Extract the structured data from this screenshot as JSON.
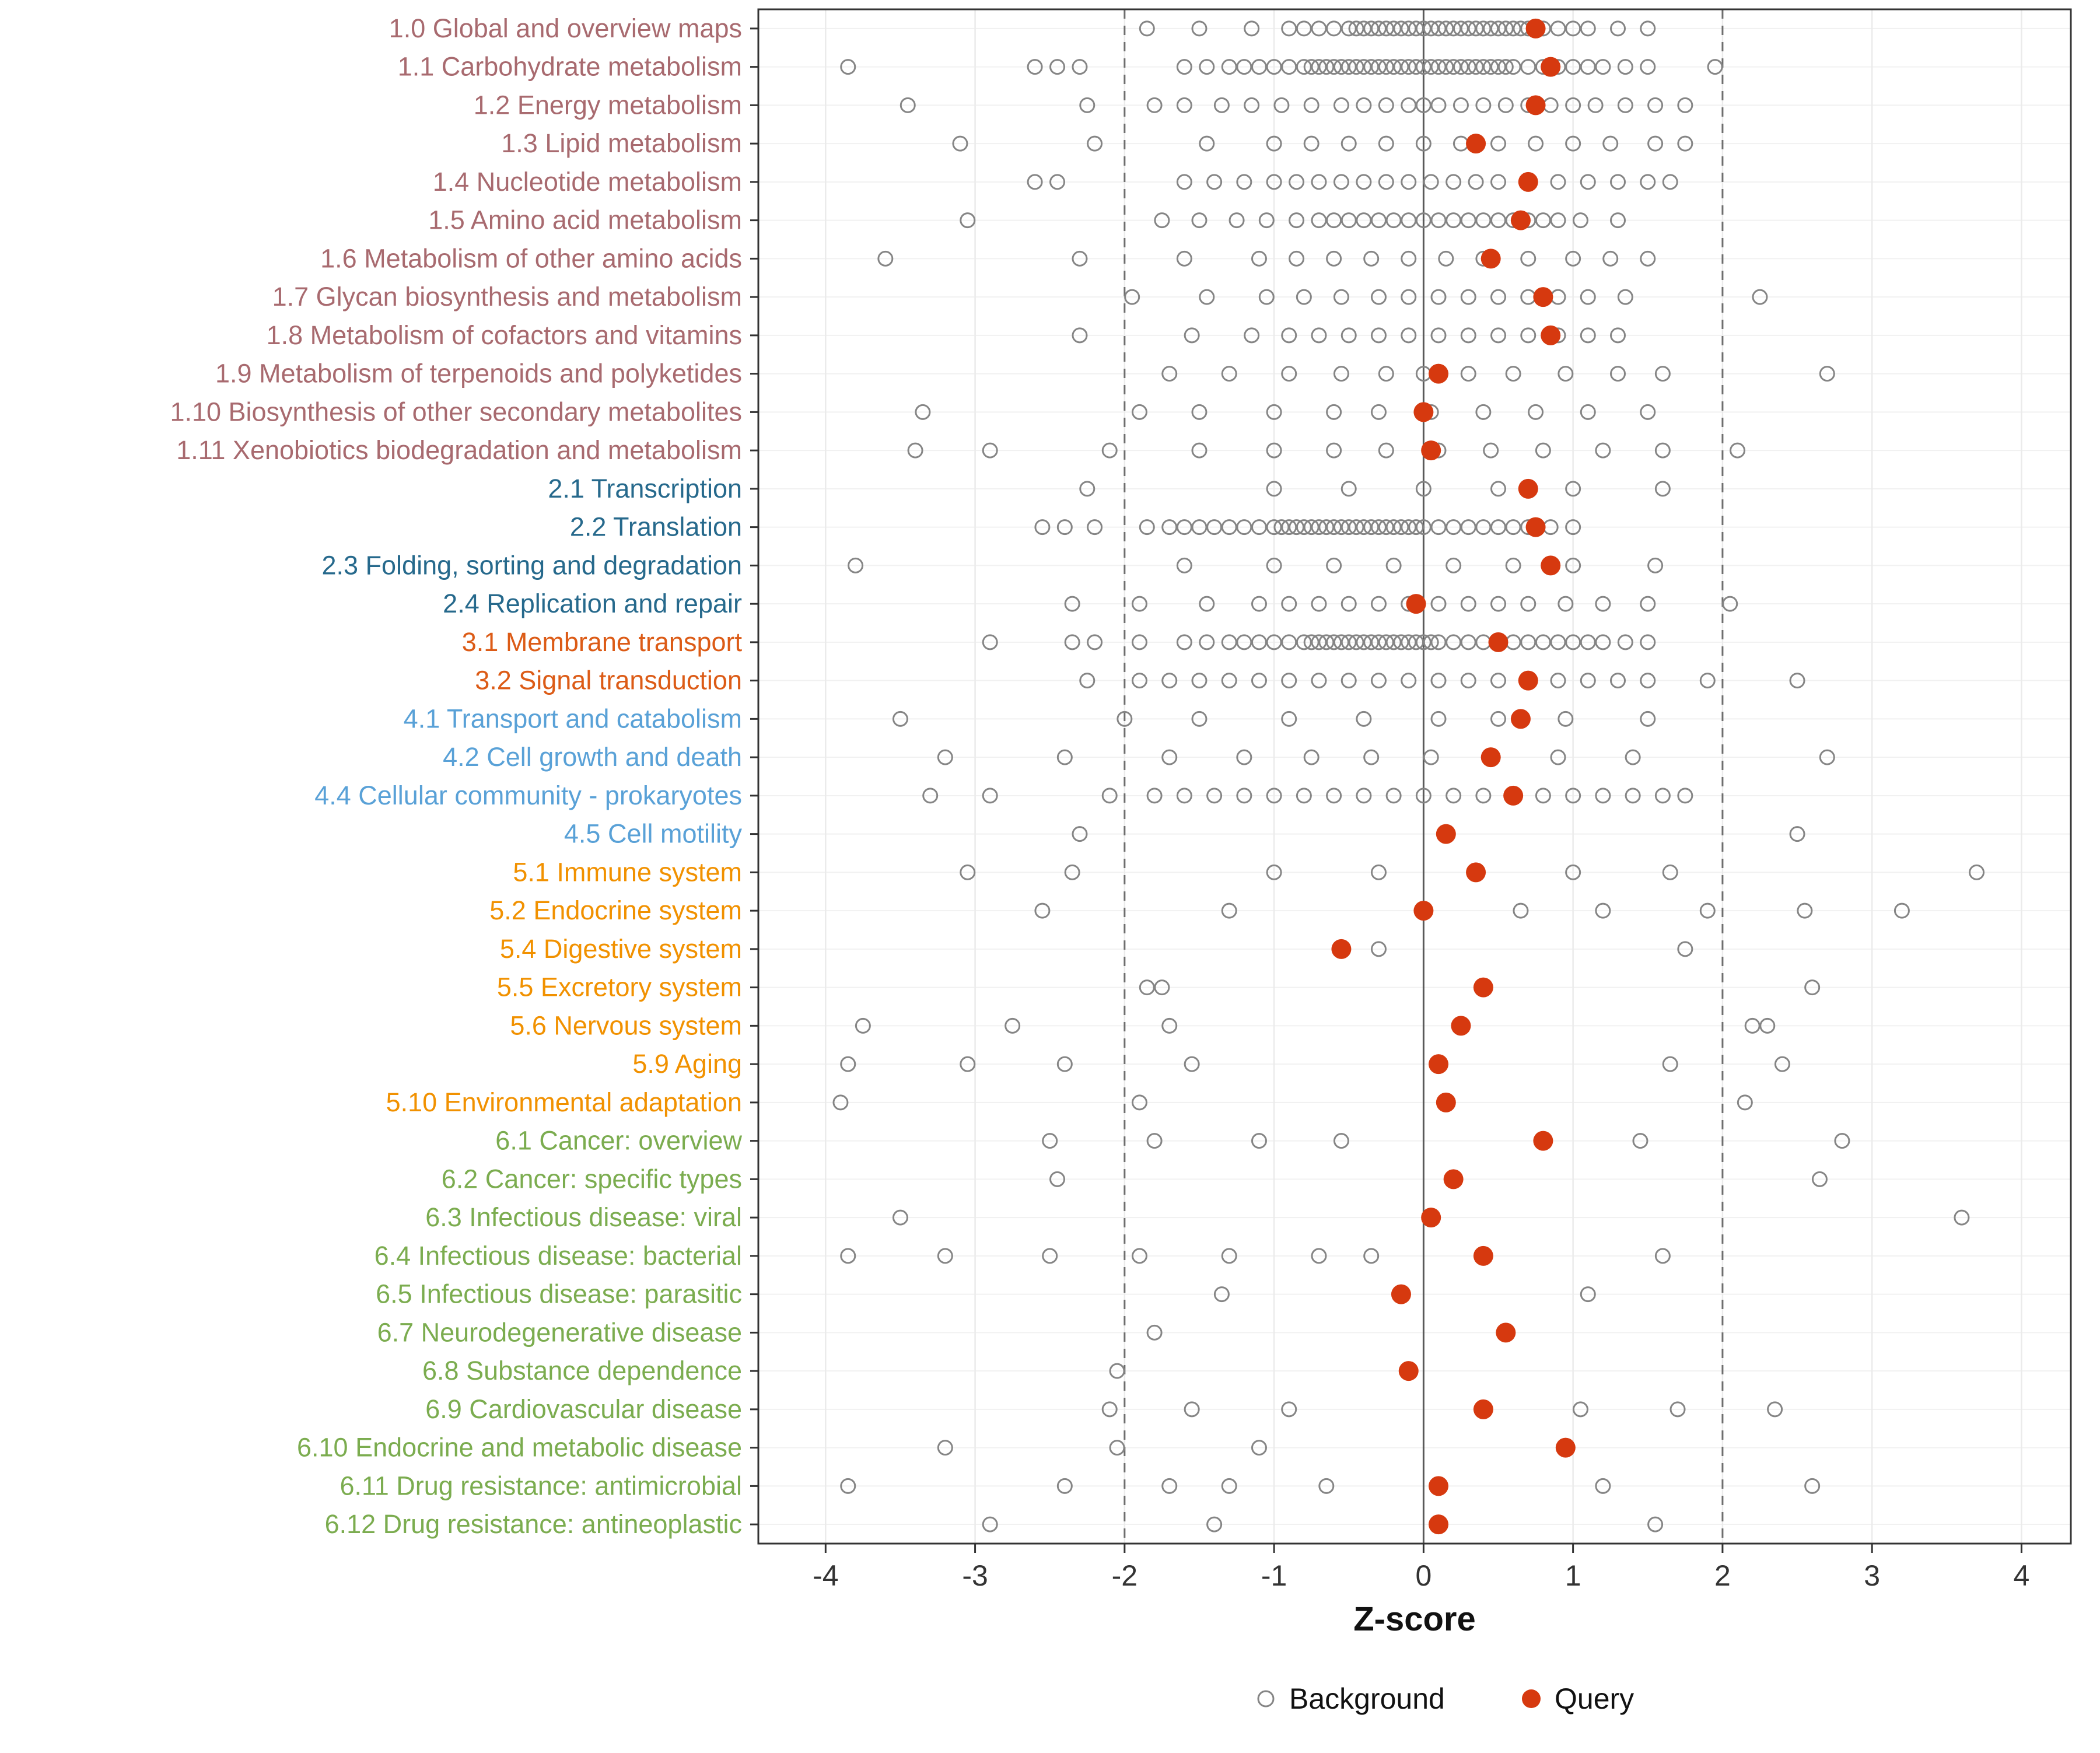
{
  "chart_data": {
    "type": "scatter",
    "title": "",
    "xlabel": "Z-score",
    "ylabel": "",
    "xlim": [
      -4.45,
      4.33
    ],
    "x_ticks": [
      -4,
      -3,
      -2,
      -1,
      0,
      1,
      2,
      3,
      4
    ],
    "grid": "light",
    "legend_position": "bottom",
    "reference_lines": {
      "solid": [
        0
      ],
      "dashed": [
        -2,
        2
      ]
    },
    "colors": {
      "background": "#858585",
      "query": "#D6390F"
    },
    "group_colors": {
      "metabolism": "#A86A6F",
      "genetic-information-processing": "#26698C",
      "environmental-information-processing": "#DC5B16",
      "cellular-processes": "#59A1D7",
      "organismal-systems": "#F19100",
      "human-diseases": "#7BAC4F"
    },
    "legend": {
      "background_label": "Background",
      "query_label": "Query"
    },
    "rows": [
      {
        "label": "1.0 Global and overview maps",
        "group": "metabolism",
        "query": 0.75,
        "background": [
          -1.85,
          -1.5,
          -1.15,
          -0.9,
          -0.8,
          -0.7,
          -0.6,
          -0.5,
          -0.45,
          -0.4,
          -0.35,
          -0.3,
          -0.25,
          -0.2,
          -0.15,
          -0.1,
          -0.05,
          0,
          0.05,
          0.1,
          0.15,
          0.2,
          0.25,
          0.3,
          0.35,
          0.4,
          0.45,
          0.5,
          0.55,
          0.6,
          0.65,
          0.7,
          0.8,
          0.9,
          1.0,
          1.1,
          1.3,
          1.5
        ]
      },
      {
        "label": "1.1 Carbohydrate metabolism",
        "group": "metabolism",
        "query": 0.85,
        "background": [
          -3.85,
          -2.6,
          -2.45,
          -2.3,
          -1.6,
          -1.45,
          -1.3,
          -1.2,
          -1.1,
          -1.0,
          -0.9,
          -0.8,
          -0.75,
          -0.7,
          -0.65,
          -0.6,
          -0.55,
          -0.5,
          -0.45,
          -0.4,
          -0.35,
          -0.3,
          -0.25,
          -0.2,
          -0.15,
          -0.1,
          -0.05,
          0,
          0.05,
          0.1,
          0.15,
          0.2,
          0.25,
          0.3,
          0.35,
          0.4,
          0.45,
          0.5,
          0.55,
          0.6,
          0.7,
          0.8,
          0.9,
          1.0,
          1.1,
          1.2,
          1.35,
          1.5,
          1.95
        ]
      },
      {
        "label": "1.2 Energy metabolism",
        "group": "metabolism",
        "query": 0.75,
        "background": [
          -3.45,
          -2.25,
          -1.8,
          -1.6,
          -1.35,
          -1.15,
          -0.95,
          -0.75,
          -0.55,
          -0.4,
          -0.25,
          -0.1,
          0,
          0.1,
          0.25,
          0.4,
          0.55,
          0.7,
          0.85,
          1.0,
          1.15,
          1.35,
          1.55,
          1.75
        ]
      },
      {
        "label": "1.3 Lipid metabolism",
        "group": "metabolism",
        "query": 0.35,
        "background": [
          -3.1,
          -2.2,
          -1.45,
          -1.0,
          -0.75,
          -0.5,
          -0.25,
          0,
          0.25,
          0.5,
          0.75,
          1.0,
          1.25,
          1.55,
          1.75
        ]
      },
      {
        "label": "1.4 Nucleotide metabolism",
        "group": "metabolism",
        "query": 0.7,
        "background": [
          -2.6,
          -2.45,
          -1.6,
          -1.4,
          -1.2,
          -1.0,
          -0.85,
          -0.7,
          -0.55,
          -0.4,
          -0.25,
          -0.1,
          0.05,
          0.2,
          0.35,
          0.5,
          0.7,
          0.9,
          1.1,
          1.3,
          1.5,
          1.65
        ]
      },
      {
        "label": "1.5 Amino acid metabolism",
        "group": "metabolism",
        "query": 0.65,
        "background": [
          -3.05,
          -1.75,
          -1.5,
          -1.25,
          -1.05,
          -0.85,
          -0.7,
          -0.6,
          -0.5,
          -0.4,
          -0.3,
          -0.2,
          -0.1,
          0,
          0.1,
          0.2,
          0.3,
          0.4,
          0.5,
          0.6,
          0.7,
          0.8,
          0.9,
          1.05,
          1.3
        ]
      },
      {
        "label": "1.6 Metabolism of other amino acids",
        "group": "metabolism",
        "query": 0.45,
        "background": [
          -3.6,
          -2.3,
          -1.6,
          -1.1,
          -0.85,
          -0.6,
          -0.35,
          -0.1,
          0.15,
          0.4,
          0.7,
          1.0,
          1.25,
          1.5
        ]
      },
      {
        "label": "1.7 Glycan biosynthesis and metabolism",
        "group": "metabolism",
        "query": 0.8,
        "background": [
          -1.95,
          -1.45,
          -1.05,
          -0.8,
          -0.55,
          -0.3,
          -0.1,
          0.1,
          0.3,
          0.5,
          0.7,
          0.9,
          1.1,
          1.35,
          2.25
        ]
      },
      {
        "label": "1.8 Metabolism of cofactors and vitamins",
        "group": "metabolism",
        "query": 0.85,
        "background": [
          -2.3,
          -1.55,
          -1.15,
          -0.9,
          -0.7,
          -0.5,
          -0.3,
          -0.1,
          0.1,
          0.3,
          0.5,
          0.7,
          0.9,
          1.1,
          1.3
        ]
      },
      {
        "label": "1.9 Metabolism of terpenoids and polyketides",
        "group": "metabolism",
        "query": 0.1,
        "background": [
          -1.7,
          -1.3,
          -0.9,
          -0.55,
          -0.25,
          0,
          0.3,
          0.6,
          0.95,
          1.3,
          1.6,
          2.7
        ]
      },
      {
        "label": "1.10 Biosynthesis of other secondary metabolites",
        "group": "metabolism",
        "query": 0.0,
        "background": [
          -3.35,
          -1.9,
          -1.5,
          -1.0,
          -0.6,
          -0.3,
          0.05,
          0.4,
          0.75,
          1.1,
          1.5
        ]
      },
      {
        "label": "1.11 Xenobiotics biodegradation and metabolism",
        "group": "metabolism",
        "query": 0.05,
        "background": [
          -3.4,
          -2.9,
          -2.1,
          -1.5,
          -1.0,
          -0.6,
          -0.25,
          0.1,
          0.45,
          0.8,
          1.2,
          1.6,
          2.1
        ]
      },
      {
        "label": "2.1 Transcription",
        "group": "genetic-information-processing",
        "query": 0.7,
        "background": [
          -2.25,
          -1.0,
          -0.5,
          0,
          0.5,
          1.0,
          1.6
        ]
      },
      {
        "label": "2.2 Translation",
        "group": "genetic-information-processing",
        "query": 0.75,
        "background": [
          -2.55,
          -2.4,
          -2.2,
          -1.85,
          -1.7,
          -1.6,
          -1.5,
          -1.4,
          -1.3,
          -1.2,
          -1.1,
          -1.0,
          -0.95,
          -0.9,
          -0.85,
          -0.8,
          -0.75,
          -0.7,
          -0.65,
          -0.6,
          -0.55,
          -0.5,
          -0.45,
          -0.4,
          -0.35,
          -0.3,
          -0.25,
          -0.2,
          -0.15,
          -0.1,
          -0.05,
          0,
          0.1,
          0.2,
          0.3,
          0.4,
          0.5,
          0.6,
          0.7,
          0.85,
          1.0
        ]
      },
      {
        "label": "2.3 Folding, sorting and degradation",
        "group": "genetic-information-processing",
        "query": 0.85,
        "background": [
          -3.8,
          -1.6,
          -1.0,
          -0.6,
          -0.2,
          0.2,
          0.6,
          1.0,
          1.55
        ]
      },
      {
        "label": "2.4 Replication and repair",
        "group": "genetic-information-processing",
        "query": -0.05,
        "background": [
          -2.35,
          -1.9,
          -1.45,
          -1.1,
          -0.9,
          -0.7,
          -0.5,
          -0.3,
          -0.1,
          0.1,
          0.3,
          0.5,
          0.7,
          0.95,
          1.2,
          1.5,
          2.05
        ]
      },
      {
        "label": "3.1 Membrane transport",
        "group": "environmental-information-processing",
        "query": 0.5,
        "background": [
          -2.9,
          -2.35,
          -2.2,
          -1.9,
          -1.6,
          -1.45,
          -1.3,
          -1.2,
          -1.1,
          -1.0,
          -0.9,
          -0.8,
          -0.75,
          -0.7,
          -0.65,
          -0.6,
          -0.55,
          -0.5,
          -0.45,
          -0.4,
          -0.35,
          -0.3,
          -0.25,
          -0.2,
          -0.15,
          -0.1,
          -0.05,
          0,
          0.05,
          0.1,
          0.2,
          0.3,
          0.4,
          0.5,
          0.6,
          0.7,
          0.8,
          0.9,
          1.0,
          1.1,
          1.2,
          1.35,
          1.5
        ]
      },
      {
        "label": "3.2 Signal transduction",
        "group": "environmental-information-processing",
        "query": 0.7,
        "background": [
          -2.25,
          -1.9,
          -1.7,
          -1.5,
          -1.3,
          -1.1,
          -0.9,
          -0.7,
          -0.5,
          -0.3,
          -0.1,
          0.1,
          0.3,
          0.5,
          0.7,
          0.9,
          1.1,
          1.3,
          1.5,
          1.9,
          2.5
        ]
      },
      {
        "label": "4.1 Transport and catabolism",
        "group": "cellular-processes",
        "query": 0.65,
        "background": [
          -3.5,
          -2.0,
          -1.5,
          -0.9,
          -0.4,
          0.1,
          0.5,
          0.95,
          1.5
        ]
      },
      {
        "label": "4.2 Cell growth and death",
        "group": "cellular-processes",
        "query": 0.45,
        "background": [
          -3.2,
          -2.4,
          -1.7,
          -1.2,
          -0.75,
          -0.35,
          0.05,
          0.45,
          0.9,
          1.4,
          2.7
        ]
      },
      {
        "label": "4.4 Cellular community - prokaryotes",
        "group": "cellular-processes",
        "query": 0.6,
        "background": [
          -3.3,
          -2.9,
          -2.1,
          -1.8,
          -1.6,
          -1.4,
          -1.2,
          -1.0,
          -0.8,
          -0.6,
          -0.4,
          -0.2,
          0,
          0.2,
          0.4,
          0.6,
          0.8,
          1.0,
          1.2,
          1.4,
          1.6,
          1.75
        ]
      },
      {
        "label": "4.5 Cell motility",
        "group": "cellular-processes",
        "query": 0.15,
        "background": [
          -2.3,
          2.5
        ]
      },
      {
        "label": "5.1 Immune system",
        "group": "organismal-systems",
        "query": 0.35,
        "background": [
          -3.05,
          -2.35,
          -1.0,
          -0.3,
          0.35,
          1.0,
          1.65,
          3.7
        ]
      },
      {
        "label": "5.2 Endocrine system",
        "group": "organismal-systems",
        "query": 0.0,
        "background": [
          -2.55,
          -1.3,
          0.65,
          1.2,
          1.9,
          2.55,
          3.2
        ]
      },
      {
        "label": "5.4 Digestive system",
        "group": "organismal-systems",
        "query": -0.55,
        "background": [
          -0.3,
          1.75
        ]
      },
      {
        "label": "5.5 Excretory system",
        "group": "organismal-systems",
        "query": 0.4,
        "background": [
          -1.85,
          -1.75,
          2.6
        ]
      },
      {
        "label": "5.6 Nervous system",
        "group": "organismal-systems",
        "query": 0.25,
        "background": [
          -3.75,
          -2.75,
          -1.7,
          2.2,
          2.3
        ]
      },
      {
        "label": "5.9 Aging",
        "group": "organismal-systems",
        "query": 0.1,
        "background": [
          -3.85,
          -3.05,
          -2.4,
          -1.55,
          1.65,
          2.4
        ]
      },
      {
        "label": "5.10 Environmental adaptation",
        "group": "organismal-systems",
        "query": 0.15,
        "background": [
          -3.9,
          -1.9,
          2.15
        ]
      },
      {
        "label": "6.1 Cancer: overview",
        "group": "human-diseases",
        "query": 0.8,
        "background": [
          -2.5,
          -1.8,
          -1.1,
          -0.55,
          1.45,
          2.8
        ]
      },
      {
        "label": "6.2 Cancer: specific types",
        "group": "human-diseases",
        "query": 0.2,
        "background": [
          -2.45,
          2.65
        ]
      },
      {
        "label": "6.3 Infectious disease: viral",
        "group": "human-diseases",
        "query": 0.05,
        "background": [
          -3.5,
          3.6
        ]
      },
      {
        "label": "6.4 Infectious disease: bacterial",
        "group": "human-diseases",
        "query": 0.4,
        "background": [
          -3.85,
          -3.2,
          -2.5,
          -1.9,
          -1.3,
          -0.7,
          -0.35,
          1.6
        ]
      },
      {
        "label": "6.5 Infectious disease: parasitic",
        "group": "human-diseases",
        "query": -0.15,
        "background": [
          -1.35,
          1.1
        ]
      },
      {
        "label": "6.7 Neurodegenerative disease",
        "group": "human-diseases",
        "query": 0.55,
        "background": [
          -1.8
        ]
      },
      {
        "label": "6.8 Substance dependence",
        "group": "human-diseases",
        "query": -0.1,
        "background": [
          -2.05
        ]
      },
      {
        "label": "6.9 Cardiovascular disease",
        "group": "human-diseases",
        "query": 0.4,
        "background": [
          -2.1,
          -1.55,
          -0.9,
          1.05,
          1.7,
          2.35
        ]
      },
      {
        "label": "6.10 Endocrine and metabolic disease",
        "group": "human-diseases",
        "query": 0.95,
        "background": [
          -3.2,
          -2.05,
          -1.1
        ]
      },
      {
        "label": "6.11 Drug resistance: antimicrobial",
        "group": "human-diseases",
        "query": 0.1,
        "background": [
          -3.85,
          -2.4,
          -1.7,
          -1.3,
          -0.65,
          1.2,
          2.6
        ]
      },
      {
        "label": "6.12 Drug resistance: antineoplastic",
        "group": "human-diseases",
        "query": 0.1,
        "background": [
          -2.9,
          -1.4,
          1.55
        ]
      }
    ]
  }
}
